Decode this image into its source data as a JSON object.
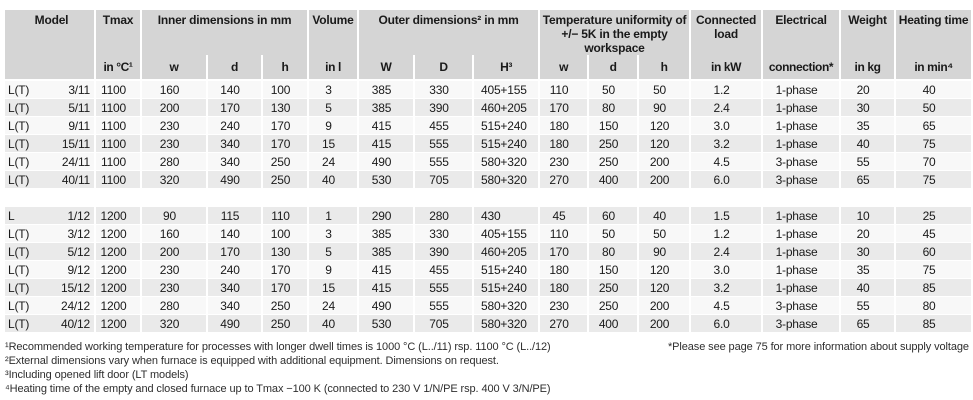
{
  "colors": {
    "header_bg": "#d5d5d5",
    "row_bg": "#f8f8f8",
    "row_alt_bg": "#eaeaea",
    "text": "#1a1a1a"
  },
  "table": {
    "header": {
      "model": "Model",
      "tmax": "Tmax",
      "tmax_sub": "in °C¹",
      "inner": "Inner dimensions in mm",
      "inner_w": "w",
      "inner_d": "d",
      "inner_h": "h",
      "volume": "Volume",
      "volume_sub": "in l",
      "outer": "Outer dimensions² in mm",
      "outer_W": "W",
      "outer_D": "D",
      "outer_H": "H³",
      "temp": "Temperature uniformity of +/− 5K in the empty workspace",
      "temp_w": "w",
      "temp_d": "d",
      "temp_h": "h",
      "load": "Connected load",
      "load_sub": "in kW",
      "electrical": "Electrical",
      "electrical_sub": "connection*",
      "weight": "Weight",
      "weight_sub": "in kg",
      "heating": "Heating time",
      "heating_sub": "in min⁴"
    },
    "groups": [
      {
        "rows": [
          {
            "model": "L(T)",
            "no": "3/11",
            "tmax": "1100",
            "w": "160",
            "d": "140",
            "h": "100",
            "vol": "3",
            "W": "385",
            "D": "330",
            "H": "405+155",
            "tw": "110",
            "td": "50",
            "th": "50",
            "kw": "1.2",
            "conn": "1-phase",
            "kg": "20",
            "min": "40"
          },
          {
            "model": "L(T)",
            "no": "5/11",
            "tmax": "1100",
            "w": "200",
            "d": "170",
            "h": "130",
            "vol": "5",
            "W": "385",
            "D": "390",
            "H": "460+205",
            "tw": "170",
            "td": "80",
            "th": "90",
            "kw": "2.4",
            "conn": "1-phase",
            "kg": "30",
            "min": "50"
          },
          {
            "model": "L(T)",
            "no": "9/11",
            "tmax": "1100",
            "w": "230",
            "d": "240",
            "h": "170",
            "vol": "9",
            "W": "415",
            "D": "455",
            "H": "515+240",
            "tw": "180",
            "td": "150",
            "th": "120",
            "kw": "3.0",
            "conn": "1-phase",
            "kg": "35",
            "min": "65"
          },
          {
            "model": "L(T)",
            "no": "15/11",
            "tmax": "1100",
            "w": "230",
            "d": "340",
            "h": "170",
            "vol": "15",
            "W": "415",
            "D": "555",
            "H": "515+240",
            "tw": "180",
            "td": "250",
            "th": "120",
            "kw": "3.2",
            "conn": "1-phase",
            "kg": "40",
            "min": "75"
          },
          {
            "model": "L(T)",
            "no": "24/11",
            "tmax": "1100",
            "w": "280",
            "d": "340",
            "h": "250",
            "vol": "24",
            "W": "490",
            "D": "555",
            "H": "580+320",
            "tw": "230",
            "td": "250",
            "th": "200",
            "kw": "4.5",
            "conn": "3-phase",
            "kg": "55",
            "min": "70"
          },
          {
            "model": "L(T)",
            "no": "40/11",
            "tmax": "1100",
            "w": "320",
            "d": "490",
            "h": "250",
            "vol": "40",
            "W": "530",
            "D": "705",
            "H": "580+320",
            "tw": "270",
            "td": "400",
            "th": "200",
            "kw": "6.0",
            "conn": "3-phase",
            "kg": "65",
            "min": "75"
          }
        ]
      },
      {
        "rows": [
          {
            "model": "L",
            "no": "1/12",
            "tmax": "1200",
            "w": "90",
            "d": "115",
            "h": "110",
            "vol": "1",
            "W": "290",
            "D": "280",
            "H": "430",
            "tw": "45",
            "td": "60",
            "th": "40",
            "kw": "1.5",
            "conn": "1-phase",
            "kg": "10",
            "min": "25"
          },
          {
            "model": "L(T)",
            "no": "3/12",
            "tmax": "1200",
            "w": "160",
            "d": "140",
            "h": "100",
            "vol": "3",
            "W": "385",
            "D": "330",
            "H": "405+155",
            "tw": "110",
            "td": "50",
            "th": "50",
            "kw": "1.2",
            "conn": "1-phase",
            "kg": "20",
            "min": "45"
          },
          {
            "model": "L(T)",
            "no": "5/12",
            "tmax": "1200",
            "w": "200",
            "d": "170",
            "h": "130",
            "vol": "5",
            "W": "385",
            "D": "390",
            "H": "460+205",
            "tw": "170",
            "td": "80",
            "th": "90",
            "kw": "2.4",
            "conn": "1-phase",
            "kg": "30",
            "min": "60"
          },
          {
            "model": "L(T)",
            "no": "9/12",
            "tmax": "1200",
            "w": "230",
            "d": "240",
            "h": "170",
            "vol": "9",
            "W": "415",
            "D": "455",
            "H": "515+240",
            "tw": "180",
            "td": "150",
            "th": "120",
            "kw": "3.0",
            "conn": "1-phase",
            "kg": "35",
            "min": "75"
          },
          {
            "model": "L(T)",
            "no": "15/12",
            "tmax": "1200",
            "w": "230",
            "d": "340",
            "h": "170",
            "vol": "15",
            "W": "415",
            "D": "555",
            "H": "515+240",
            "tw": "180",
            "td": "250",
            "th": "120",
            "kw": "3.2",
            "conn": "1-phase",
            "kg": "40",
            "min": "85"
          },
          {
            "model": "L(T)",
            "no": "24/12",
            "tmax": "1200",
            "w": "280",
            "d": "340",
            "h": "250",
            "vol": "24",
            "W": "490",
            "D": "555",
            "H": "580+320",
            "tw": "230",
            "td": "250",
            "th": "200",
            "kw": "4.5",
            "conn": "3-phase",
            "kg": "55",
            "min": "80"
          },
          {
            "model": "L(T)",
            "no": "40/12",
            "tmax": "1200",
            "w": "320",
            "d": "490",
            "h": "250",
            "vol": "40",
            "W": "530",
            "D": "705",
            "H": "580+320",
            "tw": "270",
            "td": "400",
            "th": "200",
            "kw": "6.0",
            "conn": "3-phase",
            "kg": "65",
            "min": "85"
          }
        ]
      }
    ]
  },
  "footnotes": [
    "¹Recommended working temperature for processes with longer dwell times is 1000 °C (L../11) rsp. 1100 °C (L../12)",
    "²External dimensions vary when furnace is equipped with additional equipment. Dimensions on request.",
    "³Including opened lift door (LT models)",
    "⁴Heating time of the empty and closed furnace up to Tmax −100 K (connected to 230 V 1/N/PE rsp. 400 V 3/N/PE)"
  ],
  "supply_note": "*Please see page 75 for more information about supply voltage"
}
